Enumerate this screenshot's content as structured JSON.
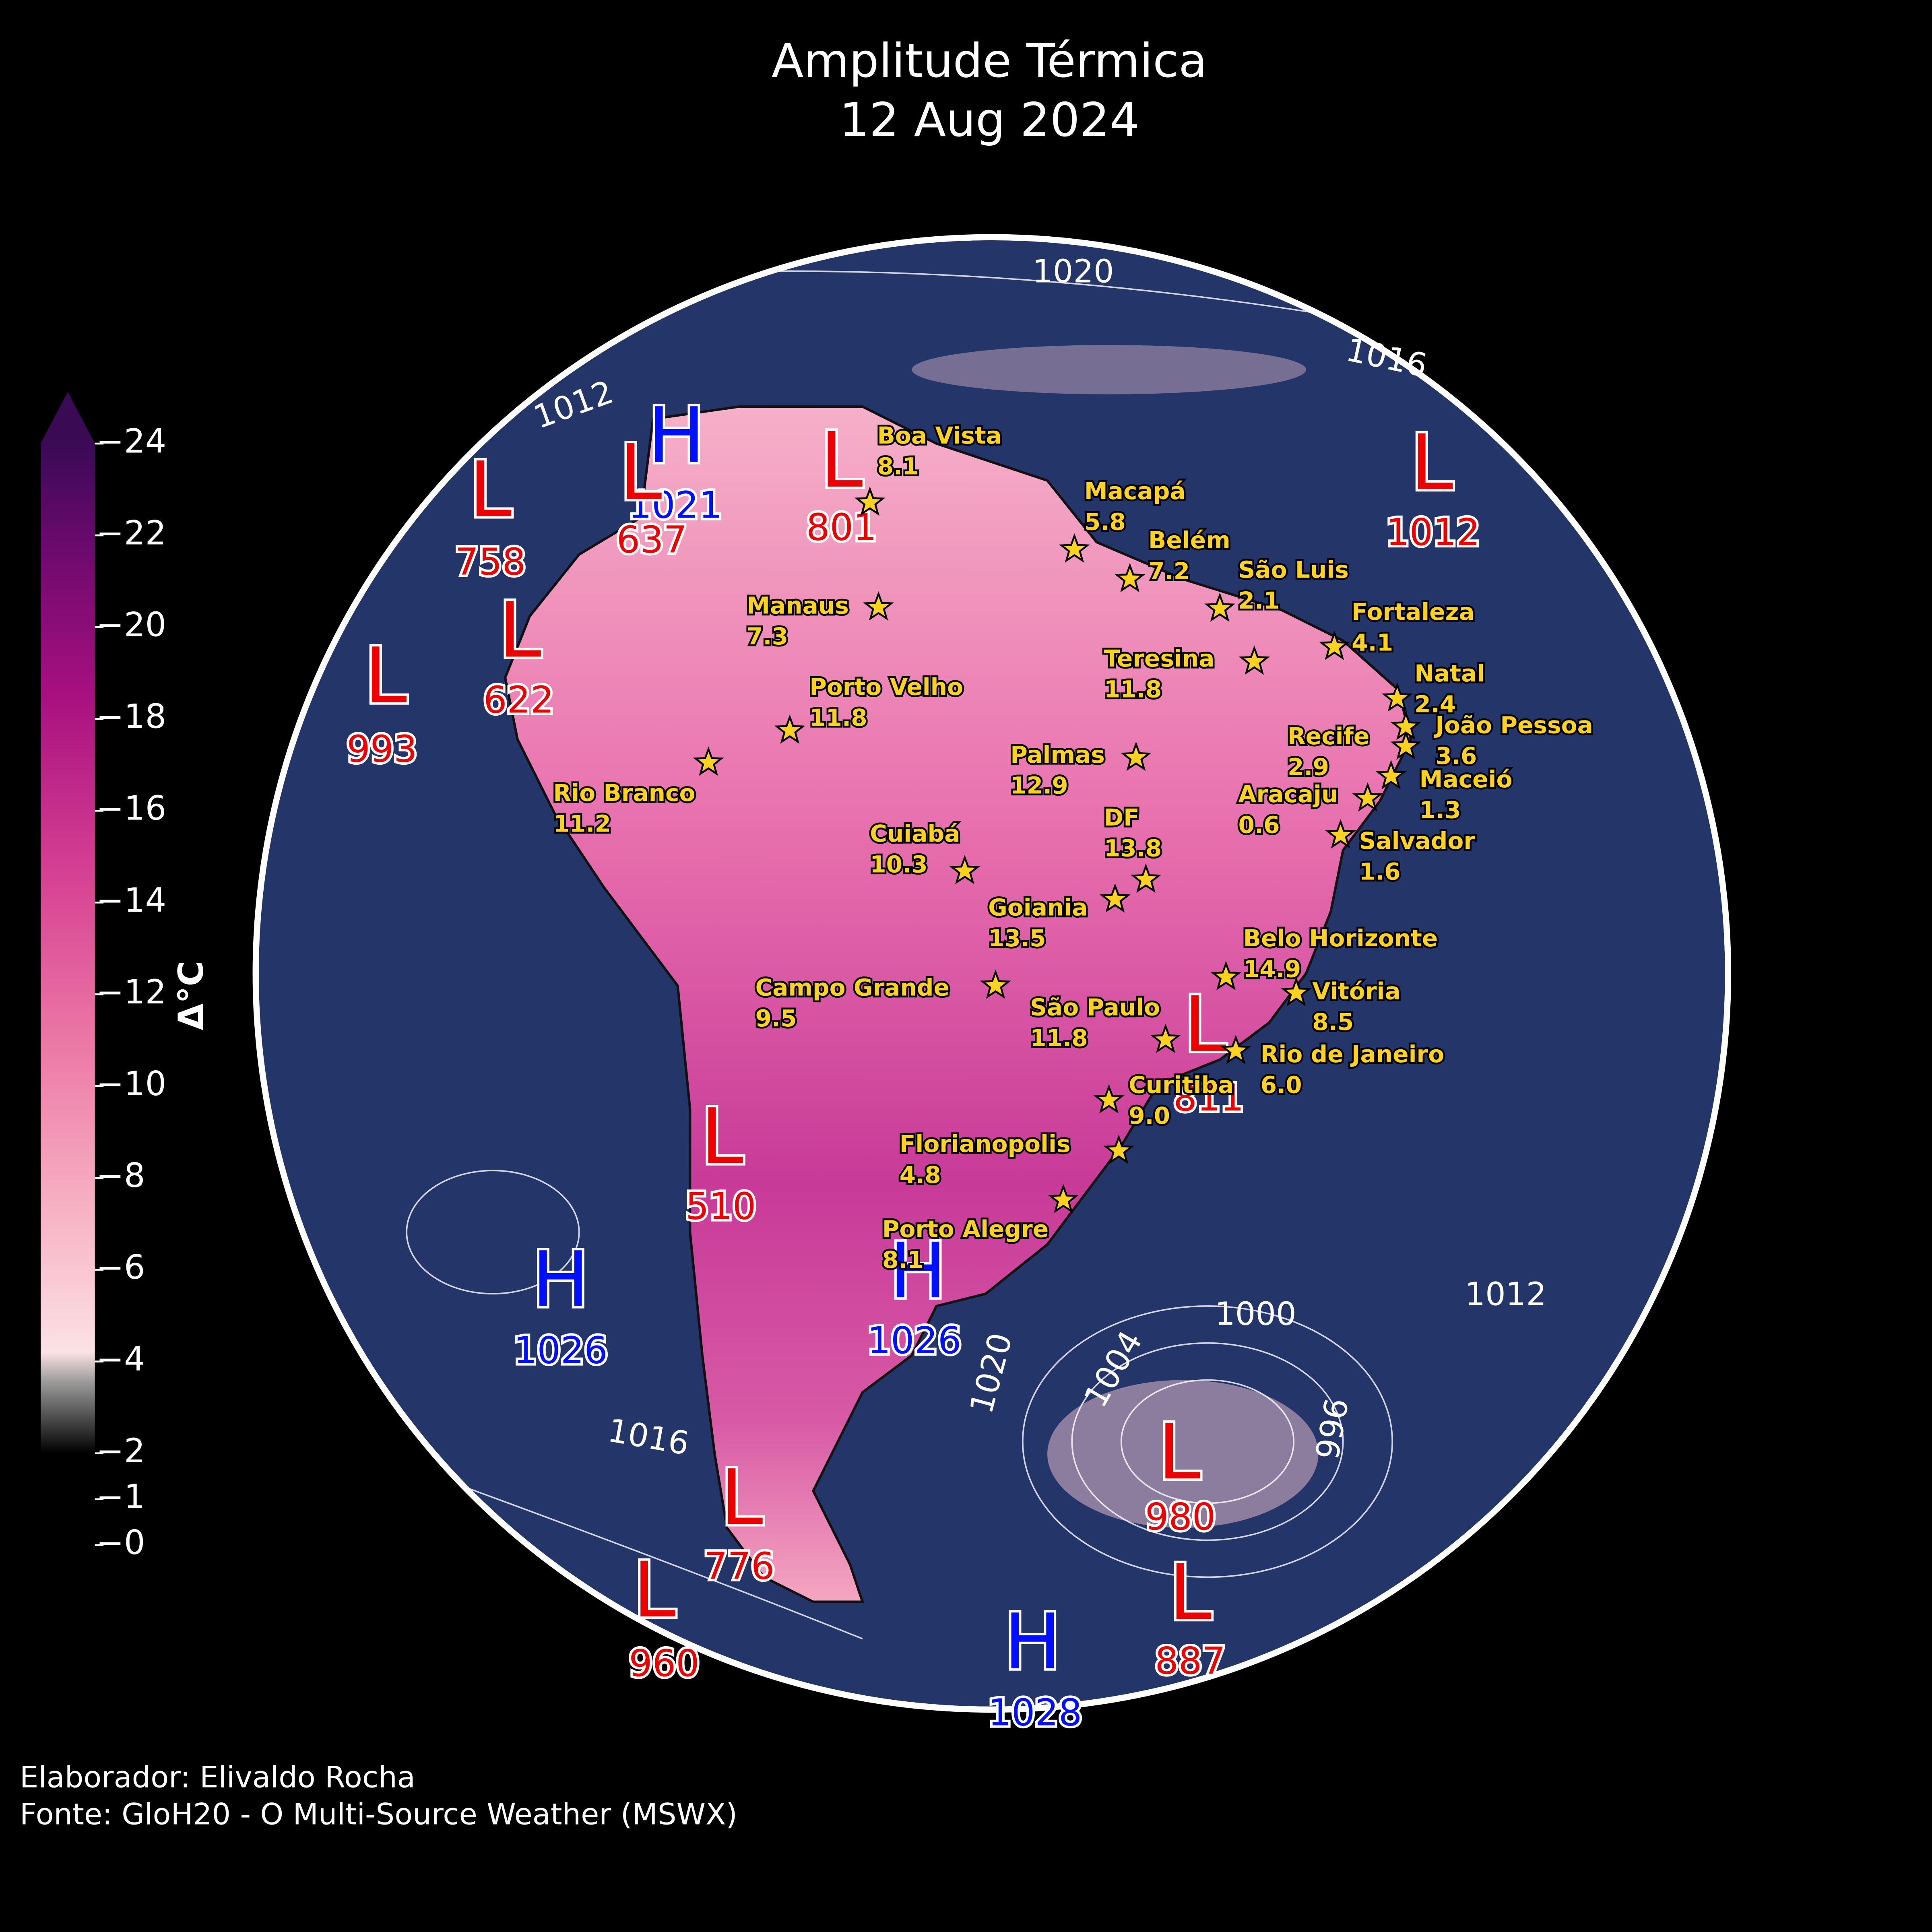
{
  "title": "Amplitude Térmica",
  "date": "12 Aug 2024",
  "colorbar": {
    "label": "Δ°C",
    "ticks": [
      {
        "value": 24,
        "label": "−24"
      },
      {
        "value": 22,
        "label": "−22"
      },
      {
        "value": 20,
        "label": "−20"
      },
      {
        "value": 18,
        "label": "−18"
      },
      {
        "value": 16,
        "label": "−16"
      },
      {
        "value": 14,
        "label": "−14"
      },
      {
        "value": 12,
        "label": "−12"
      },
      {
        "value": 10,
        "label": "−10"
      },
      {
        "value": 8,
        "label": "−8"
      },
      {
        "value": 6,
        "label": "−6"
      },
      {
        "value": 4,
        "label": "−4"
      },
      {
        "value": 2,
        "label": "−2"
      },
      {
        "value": 1,
        "label": "−1"
      },
      {
        "value": 0,
        "label": "−0"
      }
    ]
  },
  "cities": [
    {
      "name": "Boa Vista",
      "value": "8.1"
    },
    {
      "name": "Macapá",
      "value": "5.8"
    },
    {
      "name": "Belém",
      "value": "7.2"
    },
    {
      "name": "São Luis",
      "value": "2.1"
    },
    {
      "name": "Fortaleza",
      "value": "4.1"
    },
    {
      "name": "Manaus",
      "value": "7.3"
    },
    {
      "name": "Teresina",
      "value": "11.8"
    },
    {
      "name": "Natal",
      "value": "2.4"
    },
    {
      "name": "Porto Velho",
      "value": "11.8"
    },
    {
      "name": "João Pessoa",
      "value": "3.6"
    },
    {
      "name": "Recife",
      "value": "2.9"
    },
    {
      "name": "Palmas",
      "value": "12.9"
    },
    {
      "name": "Rio Branco",
      "value": "11.2"
    },
    {
      "name": "Maceió",
      "value": "1.3"
    },
    {
      "name": "Aracaju",
      "value": "0.6"
    },
    {
      "name": "Salvador",
      "value": "1.6"
    },
    {
      "name": "Cuiabá",
      "value": "10.3"
    },
    {
      "name": "DF",
      "value": "13.8"
    },
    {
      "name": "Goiania",
      "value": "13.5"
    },
    {
      "name": "Belo Horizonte",
      "value": "14.9"
    },
    {
      "name": "Vitória",
      "value": "8.5"
    },
    {
      "name": "Campo Grande",
      "value": "9.5"
    },
    {
      "name": "São Paulo",
      "value": "11.8"
    },
    {
      "name": "Rio de Janeiro",
      "value": "6.0"
    },
    {
      "name": "Curitiba",
      "value": "9.0"
    },
    {
      "name": "Florianopolis",
      "value": "4.8"
    },
    {
      "name": "Porto Alegre",
      "value": "8.1"
    }
  ],
  "pressure_systems": [
    {
      "type": "H",
      "value": 1021
    },
    {
      "type": "L",
      "value": 637
    },
    {
      "type": "L",
      "value": 758
    },
    {
      "type": "L",
      "value": 801
    },
    {
      "type": "L",
      "value": 1012
    },
    {
      "type": "L",
      "value": 622
    },
    {
      "type": "L",
      "value": 993
    },
    {
      "type": "L",
      "value": 811
    },
    {
      "type": "L",
      "value": 510
    },
    {
      "type": "H",
      "value": 1026
    },
    {
      "type": "H",
      "value": 1026
    },
    {
      "type": "L",
      "value": 980
    },
    {
      "type": "L",
      "value": 776
    },
    {
      "type": "L",
      "value": 960
    },
    {
      "type": "H",
      "value": 1028
    },
    {
      "type": "L",
      "value": 887
    }
  ],
  "isobar_labels": [
    1020,
    1016,
    1012,
    1012,
    1000,
    1016,
    1020,
    1004,
    996
  ],
  "credits": [
    "Elaborador: Elivaldo Rocha",
    "Fonte: GloH20 - O Multi-Source Weather (MSWX)"
  ]
}
